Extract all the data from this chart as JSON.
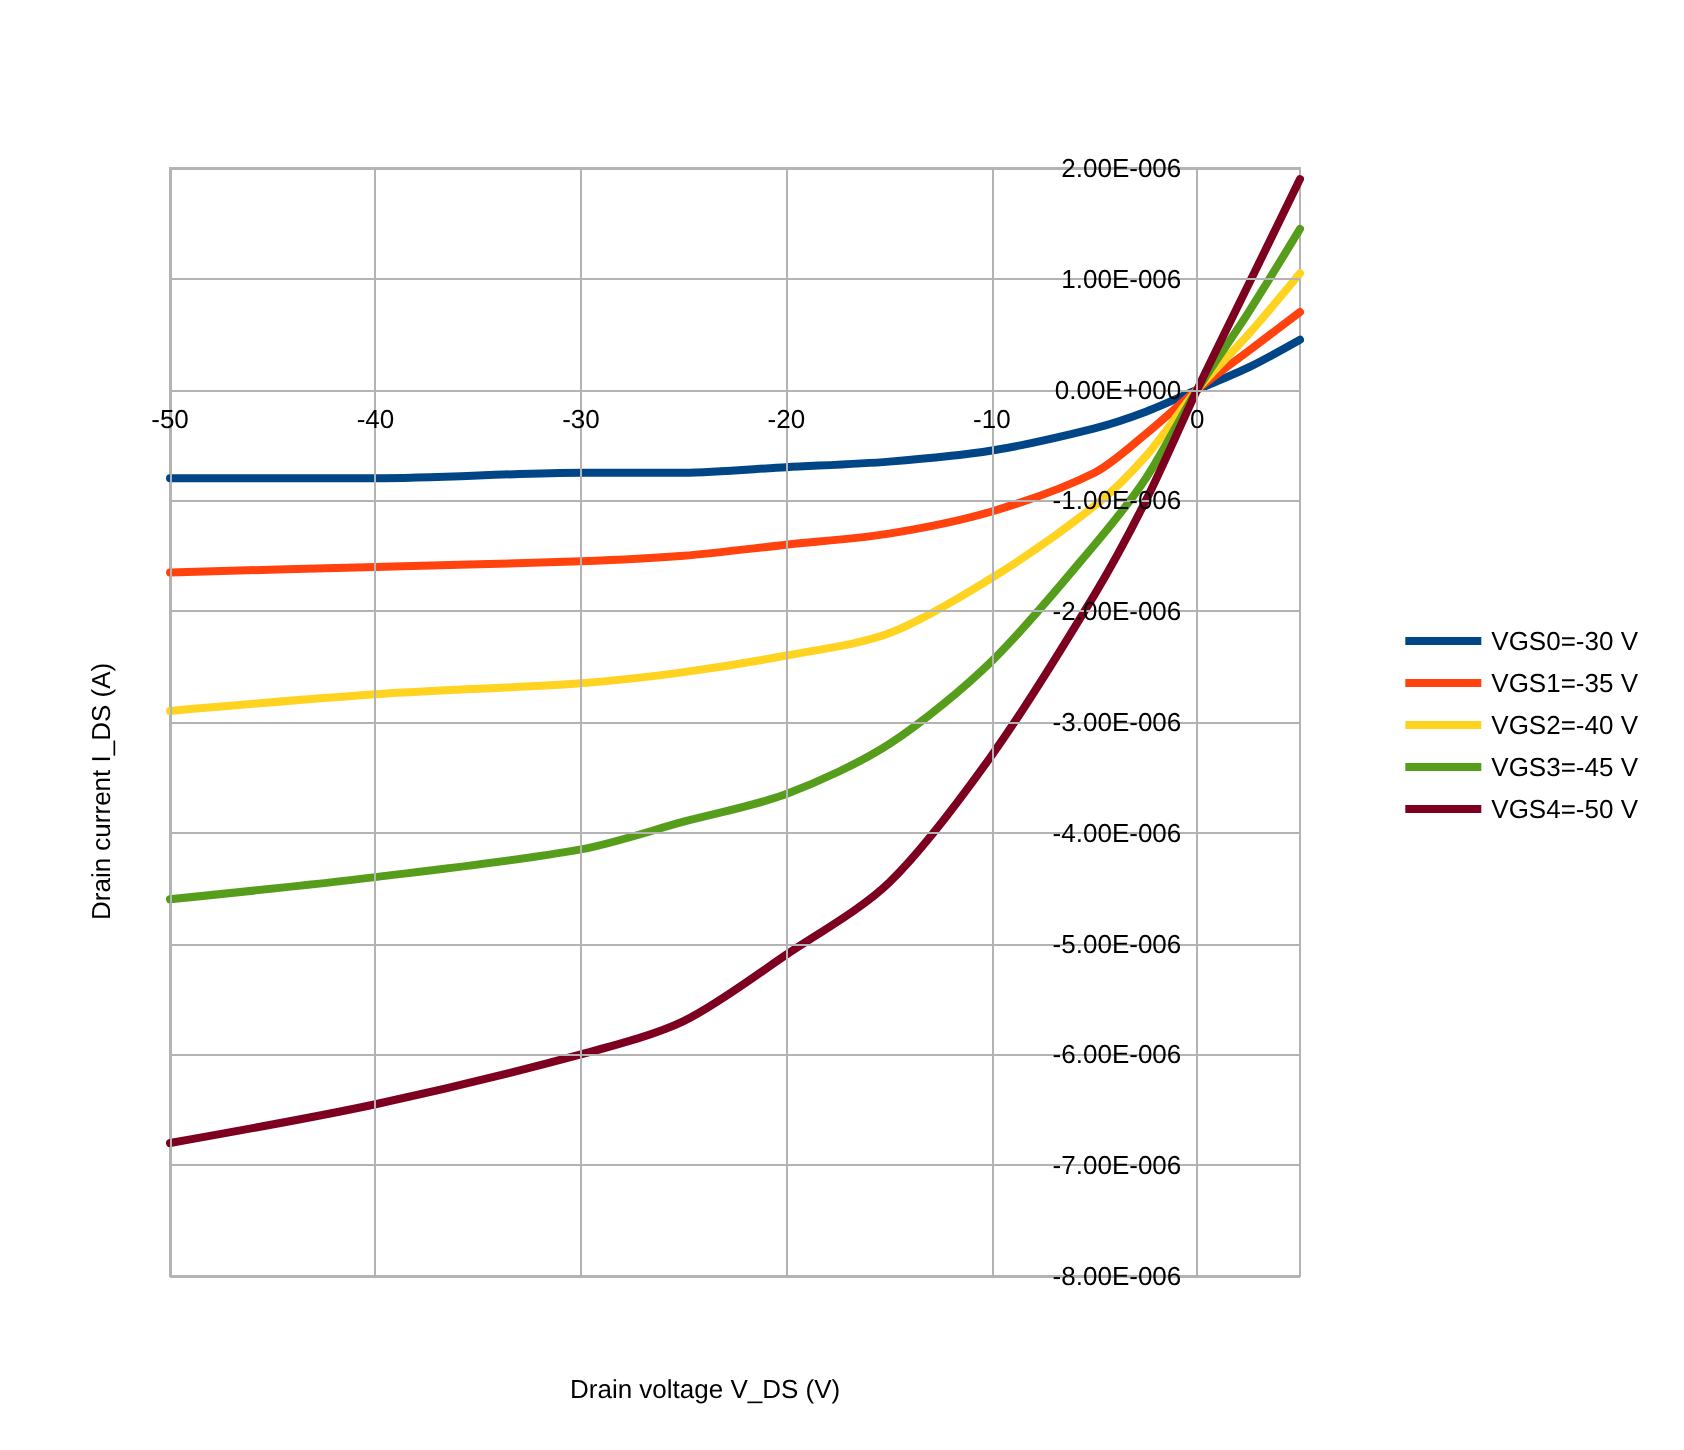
{
  "chart_data": {
    "type": "line",
    "xlabel": "Drain voltage V_DS (V)",
    "ylabel": "Drain current I_DS (A)",
    "xlim": [
      -50,
      5
    ],
    "xticks": [
      -50,
      -40,
      -30,
      -20,
      -10,
      0
    ],
    "ylim": [
      -8e-06,
      2e-06
    ],
    "yticks": [
      {
        "value": 2e-06,
        "label": "2.00E-006"
      },
      {
        "value": 1e-06,
        "label": "1.00E-006"
      },
      {
        "value": 0,
        "label": "0.00E+000"
      },
      {
        "value": -1e-06,
        "label": "-1.00E-006"
      },
      {
        "value": -2e-06,
        "label": "-2.00E-006"
      },
      {
        "value": -3e-06,
        "label": "-3.00E-006"
      },
      {
        "value": -4e-06,
        "label": "-4.00E-006"
      },
      {
        "value": -5e-06,
        "label": "-5.00E-006"
      },
      {
        "value": -6e-06,
        "label": "-6.00E-006"
      },
      {
        "value": -7e-06,
        "label": "-7.00E-006"
      },
      {
        "value": -8e-06,
        "label": "-8.00E-006"
      }
    ],
    "x": [
      -50,
      -40,
      -30,
      -25,
      -20,
      -15,
      -10,
      -5,
      -2.5,
      0,
      2.5,
      5
    ],
    "grid": true,
    "legend": "right",
    "marker": "none",
    "line_style": "solid",
    "series": [
      {
        "name": "VGS0=-30 V",
        "color": "#004586",
        "values": [
          -8e-07,
          -8e-07,
          -7.5e-07,
          -7.5e-07,
          -7e-07,
          -6.5e-07,
          -5.5e-07,
          -3.5e-07,
          -2e-07,
          0,
          2e-07,
          4.5e-07
        ]
      },
      {
        "name": "VGS1=-35 V",
        "color": "#ff420e",
        "values": [
          -1.65e-06,
          -1.6e-06,
          -1.55e-06,
          -1.5e-06,
          -1.4e-06,
          -1.3e-06,
          -1.1e-06,
          -7.5e-07,
          -4e-07,
          0,
          3.5e-07,
          7e-07
        ]
      },
      {
        "name": "VGS2=-40 V",
        "color": "#ffd320",
        "values": [
          -2.9e-06,
          -2.75e-06,
          -2.65e-06,
          -2.55e-06,
          -2.4e-06,
          -2.2e-06,
          -1.7e-06,
          -1.05e-06,
          -6e-07,
          0,
          5e-07,
          1.05e-06
        ]
      },
      {
        "name": "VGS3=-45 V",
        "color": "#579d1c",
        "values": [
          -4.6e-06,
          -4.4e-06,
          -4.15e-06,
          -3.9e-06,
          -3.65e-06,
          -3.2e-06,
          -2.45e-06,
          -1.4e-06,
          -8e-07,
          0,
          7e-07,
          1.45e-06
        ]
      },
      {
        "name": "VGS4=-50 V",
        "color": "#7e0021",
        "values": [
          -6.8e-06,
          -6.45e-06,
          -6e-06,
          -5.7e-06,
          -5.1e-06,
          -4.45e-06,
          -3.3e-06,
          -1.85e-06,
          -1e-06,
          0,
          9.5e-07,
          1.9e-06
        ]
      }
    ]
  }
}
